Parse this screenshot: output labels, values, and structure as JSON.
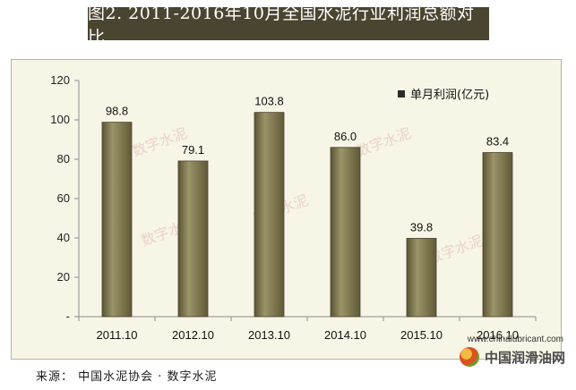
{
  "title": "图2.  2011-2016年10月全国水泥行业利润总额对比",
  "source": "来源： 中国水泥协会 · 数字水泥",
  "watermark": {
    "site": "www.chinalubricant.com",
    "logo_text": "中国润滑油网",
    "brand_stamp": "数字水泥"
  },
  "colors": {
    "bar": "#6b6540",
    "bar_highlight": "#9b9468",
    "plot_bg": "#f7f5e6",
    "title_bg": "#4a4530"
  },
  "chart_data": {
    "type": "bar",
    "categories": [
      "2011.10",
      "2012.10",
      "2013.10",
      "2014.10",
      "2015.10",
      "2016.10"
    ],
    "series": [
      {
        "name": "单月利润(亿元)",
        "values": [
          98.8,
          79.1,
          103.8,
          86.0,
          39.8,
          83.4
        ]
      }
    ],
    "data_labels": [
      "98.8",
      "79.1",
      "103.8",
      "86.0",
      "39.8",
      "83.4"
    ],
    "ylim": [
      0,
      120
    ],
    "y_ticks": [
      0,
      20,
      40,
      60,
      80,
      100,
      120
    ],
    "y_tick_labels": [
      "-",
      "20",
      "40",
      "60",
      "80",
      "100",
      "120"
    ],
    "legend": "top-right",
    "grid": false,
    "xlabel": "",
    "ylabel": ""
  }
}
